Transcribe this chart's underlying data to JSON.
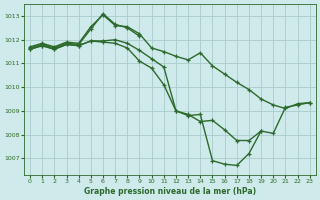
{
  "background_color": "#ceeaea",
  "grid_color": "#aacccc",
  "line_color": "#2d6a2d",
  "title": "Graphe pression niveau de la mer (hPa)",
  "ylim": [
    1006.3,
    1013.5
  ],
  "yticks": [
    1007,
    1008,
    1009,
    1010,
    1011,
    1012,
    1013
  ],
  "xlim": [
    -0.5,
    23.5
  ],
  "xticks": [
    0,
    1,
    2,
    3,
    4,
    5,
    6,
    7,
    8,
    9,
    10,
    11,
    12,
    13,
    14,
    15,
    16,
    17,
    18,
    19,
    20,
    21,
    22,
    23
  ],
  "series": [
    {
      "x": [
        0,
        1,
        2,
        3,
        4,
        5,
        6,
        7,
        8,
        9,
        10,
        11,
        12,
        13,
        14,
        15,
        16,
        17,
        18,
        19,
        20,
        21,
        22,
        23
      ],
      "y": [
        1011.7,
        1011.85,
        1011.7,
        1011.9,
        1011.85,
        1012.55,
        1013.05,
        1012.6,
        1012.55,
        1012.25,
        1011.65,
        1011.5,
        1011.3,
        1011.15,
        1011.45,
        1010.9,
        1010.55,
        1010.2,
        1009.9,
        1009.5,
        1009.25,
        1009.1,
        1009.3,
        1009.35
      ]
    },
    {
      "x": [
        0,
        1,
        2,
        3,
        4,
        5,
        6,
        7,
        8,
        9
      ],
      "y": [
        1011.65,
        1011.8,
        1011.65,
        1011.85,
        1011.8,
        1012.45,
        1013.1,
        1012.65,
        1012.5,
        1012.15
      ]
    },
    {
      "x": [
        0,
        1,
        2,
        3,
        4,
        5,
        6,
        7,
        8,
        9,
        10,
        11,
        12,
        13,
        14,
        15,
        16,
        17,
        18,
        19,
        20,
        21,
        22,
        23
      ],
      "y": [
        1011.6,
        1011.75,
        1011.6,
        1011.8,
        1011.75,
        1011.95,
        1011.95,
        1012.0,
        1011.85,
        1011.55,
        1011.2,
        1010.85,
        1009.0,
        1008.85,
        1008.55,
        1008.6,
        1008.2,
        1007.75,
        1007.75,
        1008.15,
        1008.05,
        1009.15,
        1009.25,
        1009.35
      ]
    },
    {
      "x": [
        0,
        1,
        2,
        3,
        4,
        5,
        6,
        7,
        8,
        9,
        10,
        11,
        12,
        13,
        14,
        15,
        16,
        17,
        18,
        19
      ],
      "y": [
        1011.6,
        1011.75,
        1011.6,
        1011.8,
        1011.75,
        1011.95,
        1011.9,
        1011.85,
        1011.65,
        1011.1,
        1010.8,
        1010.1,
        1009.0,
        1008.8,
        1008.85,
        1006.9,
        1006.75,
        1006.7,
        1007.2,
        1008.15
      ]
    }
  ],
  "marker_size": 3.0,
  "line_width": 1.0
}
